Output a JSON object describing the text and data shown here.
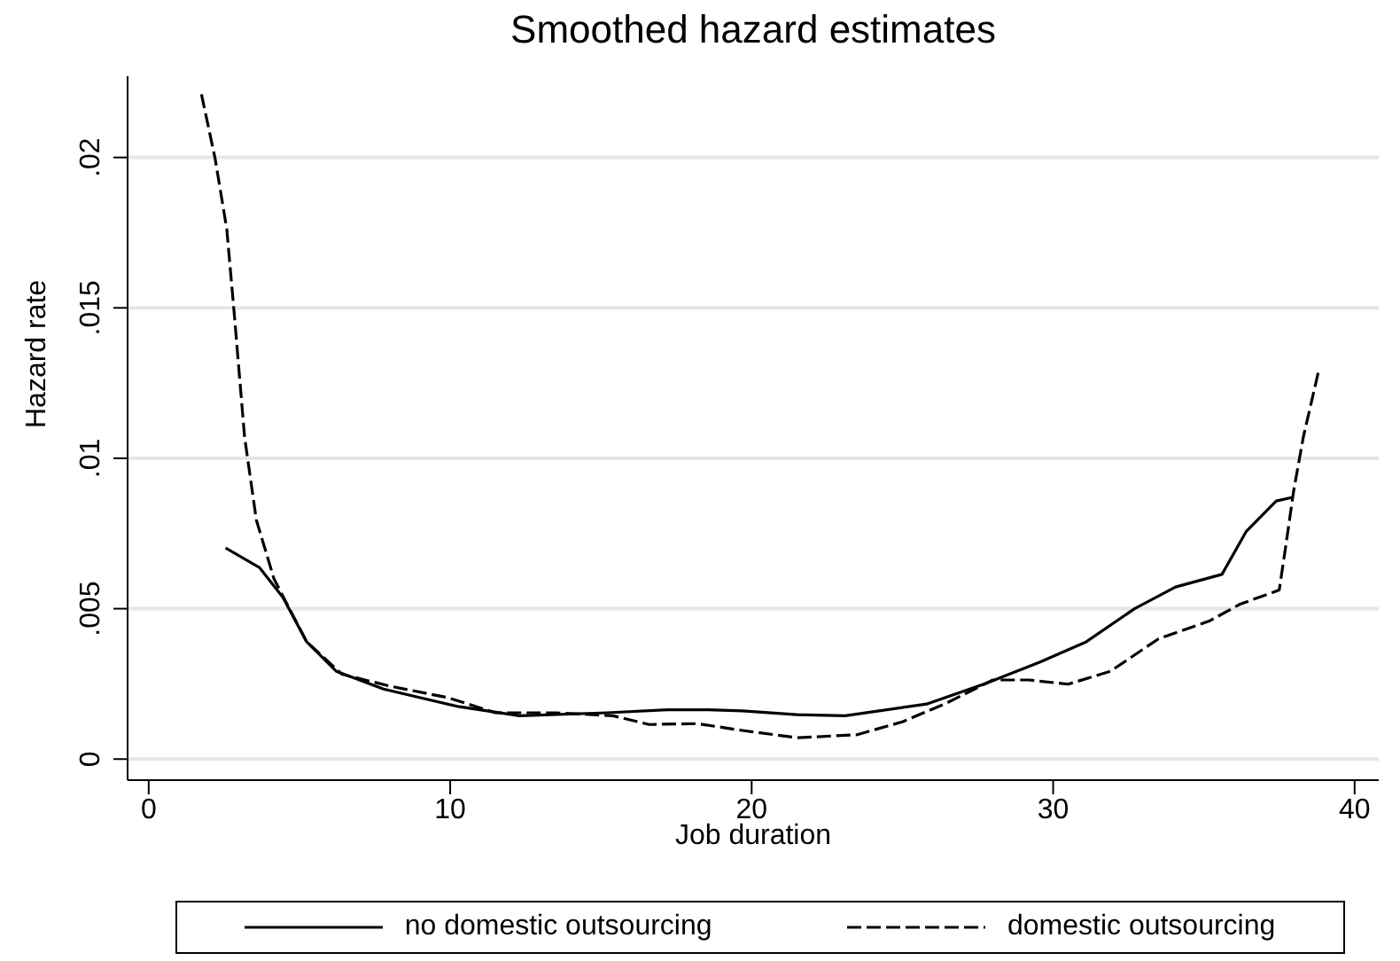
{
  "chart_data": {
    "type": "line",
    "title": "Smoothed hazard estimates",
    "xlabel": "Job duration",
    "ylabel": "Hazard rate",
    "xlim": [
      -0.7,
      40.8
    ],
    "xticks": [
      0,
      10,
      20,
      30,
      40
    ],
    "ylim": [
      -0.0007,
      0.0227
    ],
    "yticks": [
      0,
      {
        "value": 0.005,
        "label": ".005"
      },
      {
        "value": 0.01,
        "label": ".01"
      },
      {
        "value": 0.015,
        "label": ".015"
      },
      {
        "value": 0.02,
        "label": ".02"
      }
    ],
    "grid": "y",
    "legend": "bottom",
    "marker": "none",
    "series": [
      {
        "name": "no domestic outsourcing",
        "color": "#000000",
        "line_style": "solid",
        "x": [
          2.55,
          3.67,
          4.45,
          5.24,
          6.22,
          7.79,
          10.3,
          12.3,
          15.2,
          17.2,
          18.57,
          19.7,
          21.5,
          23.1,
          25.8,
          27.8,
          29.55,
          31.1,
          32.7,
          34.06,
          35.6,
          36.4,
          37.4,
          37.94
        ],
        "values": [
          0.00702,
          0.00637,
          0.00538,
          0.0039,
          0.00292,
          0.00233,
          0.00174,
          0.00144,
          0.00154,
          0.00164,
          0.00164,
          0.0016,
          0.00148,
          0.00144,
          0.00183,
          0.00253,
          0.00322,
          0.0039,
          0.005,
          0.00572,
          0.00614,
          0.00756,
          0.00858,
          0.0087
        ]
      },
      {
        "name": "domestic outsourcing",
        "color": "#000000",
        "line_style": "dashed",
        "x": [
          1.75,
          2.2,
          2.59,
          2.85,
          3.18,
          3.57,
          4.16,
          5.24,
          6.41,
          7.98,
          9.94,
          11.5,
          13.5,
          15.4,
          16.6,
          18.2,
          19.7,
          21.5,
          23.5,
          25.0,
          26.4,
          28.0,
          29.2,
          30.5,
          31.9,
          33.5,
          35.2,
          36.2,
          37.5,
          37.7,
          37.98,
          38.3,
          38.8
        ],
        "values": [
          0.0221,
          0.01998,
          0.01762,
          0.01466,
          0.01071,
          0.00795,
          0.00598,
          0.0039,
          0.00282,
          0.00243,
          0.00204,
          0.00154,
          0.00154,
          0.00144,
          0.00115,
          0.00118,
          0.00095,
          0.00071,
          0.00081,
          0.00124,
          0.00183,
          0.00263,
          0.00263,
          0.00249,
          0.00292,
          0.004,
          0.0046,
          0.00515,
          0.00562,
          0.00697,
          0.00893,
          0.01071,
          0.01288
        ]
      }
    ]
  }
}
